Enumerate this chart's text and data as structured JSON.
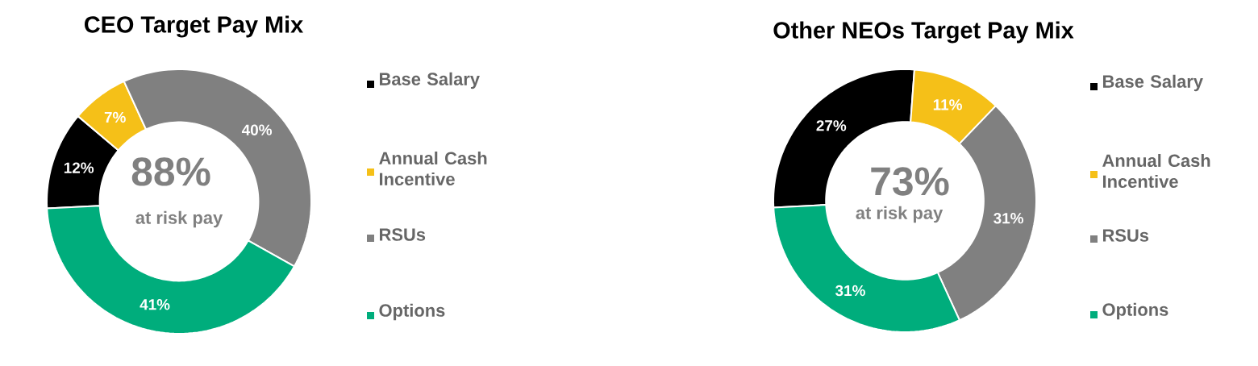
{
  "chart_data": [
    {
      "type": "donut",
      "title": "CEO Target Pay Mix",
      "categories": [
        "Base Salary",
        "Annual Cash Incentive",
        "RSUs",
        "Options"
      ],
      "values": [
        12,
        7,
        40,
        41
      ],
      "value_labels": [
        "12%",
        "7%",
        "40%",
        "41%"
      ],
      "colors": [
        "#000000",
        "#f5c018",
        "#808080",
        "#00ad7c"
      ],
      "legend": "right",
      "annotations": [
        "88%",
        "at risk pay"
      ]
    },
    {
      "type": "donut",
      "title": "Other NEOs Target Pay Mix",
      "categories": [
        "Base Salary",
        "Annual Cash Incentive",
        "RSUs",
        "Options"
      ],
      "values": [
        27,
        11,
        31,
        31
      ],
      "value_labels": [
        "27%",
        "11%",
        "31%",
        "31%"
      ],
      "colors": [
        "#000000",
        "#f5c018",
        "#808080",
        "#00ad7c"
      ],
      "legend": "right",
      "annotations": [
        "73%",
        "at risk pay"
      ]
    }
  ]
}
